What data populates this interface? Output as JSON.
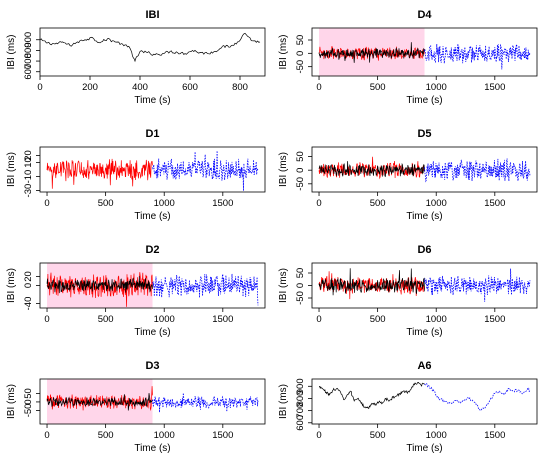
{
  "chart_data": [
    {
      "type": "line",
      "title": "IBI",
      "xlabel": "Time (s)",
      "ylabel": "IBI (ms)",
      "xlim": [
        0,
        900
      ],
      "ylim": [
        560,
        1010
      ],
      "xticks": [
        0,
        200,
        400,
        600,
        800
      ],
      "yticks": [
        600,
        700,
        800,
        900
      ],
      "series": [
        {
          "color": "#000000",
          "style": "solid",
          "x": [
            0,
            30,
            60,
            90,
            120,
            150,
            180,
            210,
            240,
            270,
            300,
            330,
            360,
            380,
            400,
            430,
            460,
            490,
            520,
            550,
            580,
            610,
            640,
            670,
            700,
            730,
            760,
            790,
            820,
            850,
            880
          ],
          "values": [
            900,
            870,
            860,
            880,
            845,
            880,
            900,
            920,
            870,
            910,
            880,
            860,
            820,
            700,
            790,
            780,
            760,
            770,
            790,
            780,
            770,
            800,
            780,
            770,
            790,
            840,
            830,
            880,
            960,
            890,
            880
          ]
        }
      ]
    },
    {
      "type": "line",
      "title": "D4",
      "xlabel": "Time (s)",
      "ylabel": "IBI (ms)",
      "xlim": [
        -60,
        1860
      ],
      "ylim": [
        -85,
        95
      ],
      "xticks": [
        0,
        500,
        1000,
        1500
      ],
      "yticks": [
        -50,
        0,
        50
      ],
      "highlight_range": [
        0,
        900
      ],
      "series": [
        {
          "color": "#ff0000",
          "style": "solid",
          "x_range": [
            0,
            900
          ],
          "amplitude": 20
        },
        {
          "color": "#000000",
          "style": "solid",
          "x_range": [
            0,
            900
          ],
          "amplitude": 15
        },
        {
          "color": "#0000ff",
          "style": "dotted",
          "x_range": [
            900,
            1800
          ],
          "amplitude": 28
        }
      ]
    },
    {
      "type": "line",
      "title": "D1",
      "xlabel": "Time (s)",
      "ylabel": "IBI (ms)",
      "xlim": [
        -60,
        1860
      ],
      "ylim": [
        -32,
        32
      ],
      "xticks": [
        0,
        500,
        1000,
        1500
      ],
      "yticks": [
        -30,
        -10,
        10,
        20
      ],
      "series": [
        {
          "color": "#ff0000",
          "style": "solid",
          "x_range": [
            0,
            900
          ],
          "amplitude": 12
        },
        {
          "color": "#0000ff",
          "style": "dotted",
          "x_range": [
            900,
            1800
          ],
          "amplitude": 12
        }
      ]
    },
    {
      "type": "line",
      "title": "D5",
      "xlabel": "Time (s)",
      "ylabel": "IBI (ms)",
      "xlim": [
        -60,
        1860
      ],
      "ylim": [
        -80,
        85
      ],
      "xticks": [
        0,
        500,
        1000,
        1500
      ],
      "yticks": [
        -50,
        0,
        50
      ],
      "series": [
        {
          "color": "#ff0000",
          "style": "solid",
          "x_range": [
            0,
            900
          ],
          "amplitude": 22
        },
        {
          "color": "#000000",
          "style": "solid",
          "x_range": [
            0,
            900
          ],
          "amplitude": 18
        },
        {
          "color": "#0000ff",
          "style": "dotted",
          "x_range": [
            900,
            1800
          ],
          "amplitude": 32
        }
      ]
    },
    {
      "type": "line",
      "title": "D2",
      "xlabel": "Time (s)",
      "ylabel": "IBI (ms)",
      "xlim": [
        -60,
        1860
      ],
      "ylim": [
        -50,
        50
      ],
      "xticks": [
        0,
        500,
        1000,
        1500
      ],
      "yticks": [
        -40,
        0,
        20
      ],
      "highlight_range": [
        0,
        900
      ],
      "series": [
        {
          "color": "#ff0000",
          "style": "solid",
          "x_range": [
            0,
            900
          ],
          "amplitude": 22
        },
        {
          "color": "#000000",
          "style": "solid",
          "x_range": [
            0,
            900
          ],
          "amplitude": 12
        },
        {
          "color": "#0000ff",
          "style": "dotted",
          "x_range": [
            900,
            1800
          ],
          "amplitude": 20
        }
      ]
    },
    {
      "type": "line",
      "title": "D6",
      "xlabel": "Time (s)",
      "ylabel": "IBI (ms)",
      "xlim": [
        -60,
        1860
      ],
      "ylim": [
        -90,
        90
      ],
      "xticks": [
        0,
        500,
        1000,
        1500
      ],
      "yticks": [
        -50,
        0,
        50
      ],
      "series": [
        {
          "color": "#ff0000",
          "style": "solid",
          "x_range": [
            0,
            900
          ],
          "amplitude": 28
        },
        {
          "color": "#000000",
          "style": "solid",
          "x_range": [
            0,
            900
          ],
          "amplitude": 24
        },
        {
          "color": "#0000ff",
          "style": "dotted",
          "x_range": [
            900,
            1800
          ],
          "amplitude": 32
        }
      ]
    },
    {
      "type": "line",
      "title": "D3",
      "xlabel": "Time (s)",
      "ylabel": "IBI (ms)",
      "xlim": [
        -60,
        1860
      ],
      "ylim": [
        -130,
        135
      ],
      "xticks": [
        0,
        500,
        1000,
        1500
      ],
      "yticks": [
        -50,
        0,
        50
      ],
      "highlight_range": [
        0,
        900
      ],
      "series": [
        {
          "color": "#ff0000",
          "style": "solid",
          "x_range": [
            0,
            900
          ],
          "amplitude": 35
        },
        {
          "color": "#000000",
          "style": "solid",
          "x_range": [
            0,
            900
          ],
          "amplitude": 20
        },
        {
          "color": "#0000ff",
          "style": "dotted",
          "x_range": [
            900,
            1800
          ],
          "amplitude": 28
        }
      ]
    },
    {
      "type": "line",
      "title": "A6",
      "xlabel": "Time (s)",
      "ylabel": "IBI (ms)",
      "xlim": [
        -60,
        1860
      ],
      "ylim": [
        590,
        960
      ],
      "xticks": [
        0,
        500,
        1000,
        1500
      ],
      "yticks": [
        600,
        700,
        800,
        900
      ],
      "series": [
        {
          "color": "#000000",
          "style": "solid",
          "x": [
            0,
            30,
            60,
            90,
            120,
            150,
            180,
            210,
            240,
            270,
            300,
            330,
            360,
            390,
            420,
            450,
            480,
            510,
            540,
            570,
            600,
            630,
            660,
            690,
            720,
            750,
            780,
            810,
            840,
            870,
            900
          ],
          "values": [
            900,
            880,
            850,
            830,
            870,
            880,
            860,
            790,
            830,
            860,
            780,
            800,
            760,
            730,
            720,
            760,
            750,
            770,
            760,
            800,
            780,
            810,
            820,
            840,
            860,
            850,
            870,
            920,
            930,
            910,
            920
          ]
        },
        {
          "color": "#0000ff",
          "style": "dotted",
          "x": [
            900,
            940,
            980,
            1020,
            1060,
            1100,
            1140,
            1180,
            1220,
            1260,
            1300,
            1340,
            1380,
            1420,
            1460,
            1500,
            1540,
            1580,
            1620,
            1660,
            1700,
            1740,
            1780,
            1800
          ],
          "values": [
            920,
            900,
            860,
            800,
            790,
            760,
            770,
            780,
            770,
            800,
            790,
            750,
            700,
            730,
            790,
            840,
            860,
            830,
            880,
            860,
            870,
            840,
            880,
            860
          ]
        }
      ]
    }
  ]
}
